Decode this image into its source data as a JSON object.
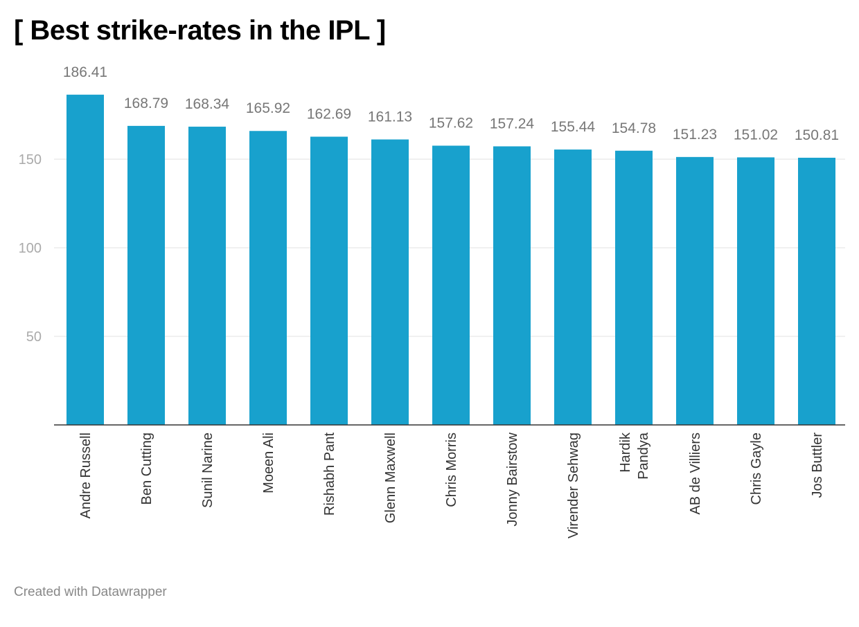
{
  "chart_data": {
    "type": "bar",
    "title": "[ Best strike-rates in the IPL ]",
    "xlabel": "",
    "ylabel": "",
    "categories": [
      "Andre Russell",
      "Ben Cutting",
      "Sunil Narine",
      "Moeen Ali",
      "Rishabh Pant",
      "Glenn Maxwell",
      "Chris Morris",
      "Jonny Bairstow",
      "Virender Sehwag",
      "Hardik Pandya",
      "AB de Villiers",
      "Chris Gayle",
      "Jos Buttler"
    ],
    "values": [
      186.41,
      168.79,
      168.34,
      165.92,
      162.69,
      161.13,
      157.62,
      157.24,
      155.44,
      154.78,
      151.23,
      151.02,
      150.81
    ],
    "value_labels": [
      "186.41",
      "168.79",
      "168.34",
      "165.92",
      "162.69",
      "161.13",
      "157.62",
      "157.24",
      "155.44",
      "154.78",
      "151.23",
      "151.02",
      "150.81"
    ],
    "ylim": [
      0,
      186.41
    ],
    "yticks": [
      50,
      100,
      150
    ],
    "ytick_labels": [
      "50",
      "100",
      "150"
    ],
    "grid": true,
    "bar_color": "#18a1cd"
  },
  "footer": "Created with Datawrapper"
}
